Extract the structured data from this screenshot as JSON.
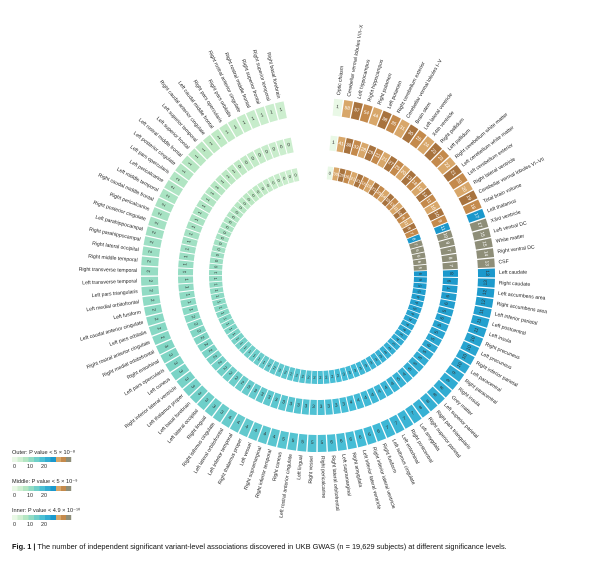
{
  "caption": {
    "fig_label": "Fig. 1 |",
    "text": "The number of independent significant variant-level associations discovered in UKB GWAS (n = 19,629 subjects) at different significance levels."
  },
  "legend": [
    {
      "label": "Outer: P value < 5 × 10⁻⁸",
      "ticks": [
        "0",
        "10",
        "20"
      ]
    },
    {
      "label": "Middle: P value < 5 × 10⁻⁹",
      "ticks": [
        "0",
        "10",
        "20"
      ]
    },
    {
      "label": "Inner: P value < 4.9 × 10⁻¹⁰",
      "ticks": [
        "0",
        "10",
        "20"
      ]
    }
  ],
  "colors": {
    "gradient": [
      "#e9f8e6",
      "#bde9c3",
      "#80d6c4",
      "#43bcd7",
      "#1b98cc"
    ],
    "brown": [
      "#c48a4c",
      "#d8a76a",
      "#a8733e"
    ],
    "gray": "#8e8e78"
  },
  "chart_data": {
    "type": "table",
    "layout": "circular",
    "rings": [
      "Outer: P value < 5 × 10⁻⁸",
      "Middle: P value < 5 × 10⁻⁹",
      "Inner: P value < 4.9 × 10⁻¹⁰"
    ],
    "color_scale_ticks": [
      0,
      10,
      20
    ],
    "categories": [
      "Optic chiasm",
      "Cerebellar vermal lobules VIII–X",
      "Left hippocampus",
      "Right hippocampus",
      "Right putamen",
      "Left putamen",
      "Right cerebellum exterior",
      "Cerebellar vermal lobules I–V",
      "Brain stem",
      "Left lateral ventricle",
      "X4th ventricle",
      "Right pallidum",
      "Left pallidum",
      "Right cerebellum white matter",
      "Left cerebellum white matter",
      "Left cerebellum exterior",
      "Right lateral ventricle",
      "Cerebellar vermal lobules VI–VII",
      "Total brain volume",
      "Left thalamus",
      "X3rd ventricle",
      "Left ventral DC",
      "White matter",
      "Right ventral DC",
      "CSF",
      "Left caudate",
      "Right caudate",
      "Left accumbens area",
      "Right accumbens area",
      "Left inferior parietal",
      "Left postcentral",
      "Left insula",
      "Right precuneus",
      "Left precuneus",
      "Right inferior parietal",
      "Left paracentral",
      "Right paracentral",
      "Right insula",
      "Grey matter",
      "Left superior parietal",
      "Right pars triangularis",
      "Right superior parietal",
      "Left amygdala",
      "Right postcentral",
      "Left entorhinal",
      "Left isthmus cingulate",
      "Right fusiform",
      "Right inferior lateral ventricle",
      "Left inferior lateral ventricle",
      "Right amygdala",
      "Left supramarginal",
      "Right lateral orbitofrontal",
      "Right pericalcarine",
      "Right vessel",
      "Left lingual",
      "Left rostral anterior cingulate",
      "Right cuneus",
      "Right inferior temporal",
      "Right supramarginal",
      "Left vessel",
      "Right thalamus proper",
      "Left inferior temporal",
      "Left lateral orbitofrontal",
      "Right isthmus cingulate",
      "Right lingual",
      "Left lateral occipital",
      "Left basal forebrain",
      "Left thalamus proper",
      "Right inferior lateral ventricle",
      "Left cuneus",
      "Left pars opercularis",
      "Right entorhinal",
      "Right medial orbitofrontal",
      "Right rostral anterior cingulate",
      "Left pars orbitalis",
      "Left caudal anterior cingulate",
      "Left fusiform",
      "Left medial orbitofrontal",
      "Left pars triangularis",
      "Left transverse temporal",
      "Right transverse temporal",
      "Right middle temporal",
      "Right lateral occipital",
      "Right parahippocampal",
      "Left parahippocampal",
      "Right posterior cingulate",
      "Right pericalcarine",
      "Right caudal middle frontal",
      "Left middle temporal",
      "Left pericalcarine",
      "Left pars opercularis",
      "Left posterior cingulate",
      "Left rostral middle frontal",
      "Left superior frontal",
      "Left superior temporal",
      "Right caudal anterior cingulate",
      "Left caudal middle frontal",
      "Right pars opercularis",
      "Right pars orbitalis",
      "Right rostral anterior cingulate",
      "Right rostral middle frontal",
      "Right superior frontal",
      "Right superior temporal",
      "Right basal forebrain"
    ],
    "outer": [
      1,
      58,
      57,
      54,
      44,
      38,
      35,
      31,
      30,
      26,
      24,
      23,
      23,
      22,
      21,
      20,
      20,
      19,
      18,
      17,
      17,
      15,
      15,
      14,
      13,
      13,
      13,
      12,
      12,
      11,
      11,
      11,
      10,
      10,
      10,
      10,
      9,
      9,
      8,
      8,
      8,
      8,
      7,
      7,
      7,
      7,
      6,
      6,
      6,
      6,
      6,
      6,
      5,
      5,
      5,
      5,
      5,
      4,
      4,
      4,
      4,
      4,
      4,
      3,
      3,
      3,
      3,
      3,
      3,
      3,
      3,
      3,
      3,
      2,
      2,
      2,
      2,
      2,
      2,
      2,
      2,
      2,
      2,
      2,
      2,
      2,
      2,
      2,
      2,
      2,
      2,
      1,
      1,
      1,
      1,
      1,
      1,
      1,
      1,
      1,
      1,
      1,
      1,
      1
    ],
    "middle": [
      1,
      41,
      38,
      33,
      28,
      29,
      22,
      21,
      27,
      25,
      20,
      13,
      18,
      15,
      14,
      11,
      16,
      10,
      9,
      11,
      10,
      9,
      7,
      8,
      7,
      8,
      9,
      7,
      6,
      6,
      5,
      6,
      5,
      5,
      5,
      6,
      5,
      5,
      5,
      5,
      4,
      5,
      4,
      4,
      4,
      4,
      4,
      4,
      4,
      3,
      3,
      3,
      3,
      3,
      3,
      3,
      3,
      3,
      3,
      3,
      3,
      3,
      3,
      2,
      2,
      2,
      2,
      2,
      2,
      2,
      2,
      2,
      2,
      2,
      2,
      1,
      1,
      1,
      1,
      1,
      1,
      1,
      1,
      1,
      1,
      1,
      1,
      1,
      1,
      1,
      1,
      1,
      1,
      1,
      1,
      1,
      0,
      0,
      0,
      0,
      0,
      0,
      0,
      0
    ],
    "inner": [
      0,
      30,
      29,
      26,
      21,
      21,
      16,
      15,
      21,
      20,
      14,
      10,
      13,
      11,
      10,
      8,
      11,
      8,
      7,
      8,
      7,
      6,
      6,
      6,
      5,
      6,
      6,
      5,
      5,
      4,
      4,
      5,
      4,
      4,
      4,
      4,
      3,
      4,
      3,
      3,
      3,
      3,
      3,
      3,
      3,
      3,
      3,
      3,
      3,
      2,
      2,
      2,
      2,
      2,
      2,
      2,
      2,
      2,
      2,
      2,
      2,
      2,
      1,
      1,
      1,
      1,
      1,
      1,
      1,
      1,
      1,
      1,
      1,
      1,
      1,
      1,
      1,
      1,
      1,
      1,
      1,
      0,
      0,
      0,
      0,
      0,
      0,
      0,
      0,
      0,
      0,
      0,
      0,
      0,
      0,
      0,
      0,
      0,
      0,
      0,
      0,
      0,
      0,
      0
    ]
  }
}
